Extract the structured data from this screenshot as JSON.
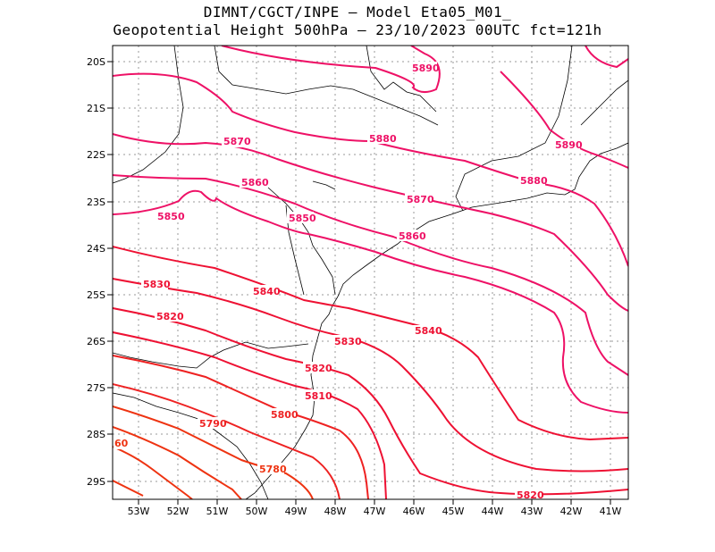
{
  "title_line1": "DIMNT/CGCT/INPE –  Model Eta05_M01_",
  "title_line2": "Geopotential Height 500hPa –  23/10/2023 00UTC fct=121h",
  "map": {
    "lon_range": [
      -53.6,
      -40.5
    ],
    "lat_range": [
      -29.4,
      -19.6
    ],
    "grid": true,
    "x_ticks": [
      "53W",
      "52W",
      "51W",
      "50W",
      "49W",
      "48W",
      "47W",
      "46W",
      "45W",
      "44W",
      "43W",
      "42W",
      "41W"
    ],
    "y_ticks": [
      "20S",
      "21S",
      "22S",
      "23S",
      "24S",
      "25S",
      "26S",
      "27S",
      "28S",
      "29S"
    ]
  },
  "colors": {
    "high": "#ee1166",
    "mid": "#ee1133",
    "low": "#ee3311",
    "coast": "#000000",
    "grid": "#999999"
  },
  "contour_labels": [
    "5890",
    "5890",
    "5880",
    "5880",
    "5870",
    "5870",
    "5860",
    "5860",
    "5850",
    "5850",
    "5840",
    "5840",
    "5830",
    "5830",
    "5820",
    "5820",
    "5820",
    "5810",
    "5800",
    "5790",
    "5780",
    "60"
  ]
}
